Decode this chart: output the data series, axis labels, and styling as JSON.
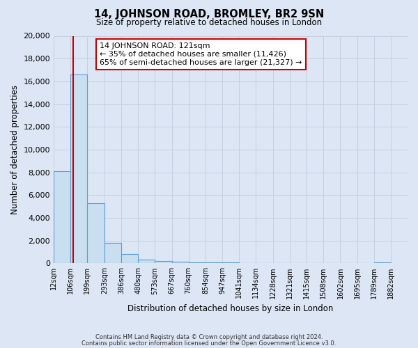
{
  "title1": "14, JOHNSON ROAD, BROMLEY, BR2 9SN",
  "title2": "Size of property relative to detached houses in London",
  "xlabel": "Distribution of detached houses by size in London",
  "ylabel": "Number of detached properties",
  "bar_left_edges": [
    12,
    106,
    199,
    293,
    386,
    480,
    573,
    667,
    760,
    854,
    947,
    1041,
    1134,
    1228,
    1321,
    1415,
    1508,
    1602,
    1695,
    1789
  ],
  "bar_widths": [
    94,
    93,
    94,
    93,
    94,
    93,
    94,
    93,
    94,
    93,
    94,
    93,
    94,
    93,
    94,
    93,
    94,
    93,
    94,
    93
  ],
  "bar_heights": [
    8100,
    16600,
    5300,
    1800,
    800,
    300,
    200,
    150,
    100,
    80,
    50,
    40,
    30,
    25,
    20,
    15,
    12,
    10,
    8,
    100
  ],
  "xtick_labels": [
    "12sqm",
    "106sqm",
    "199sqm",
    "293sqm",
    "386sqm",
    "480sqm",
    "573sqm",
    "667sqm",
    "760sqm",
    "854sqm",
    "947sqm",
    "1041sqm",
    "1134sqm",
    "1228sqm",
    "1321sqm",
    "1415sqm",
    "1508sqm",
    "1602sqm",
    "1695sqm",
    "1789sqm",
    "1882sqm"
  ],
  "xtick_positions": [
    12,
    106,
    199,
    293,
    386,
    480,
    573,
    667,
    760,
    854,
    947,
    1041,
    1134,
    1228,
    1321,
    1415,
    1508,
    1602,
    1695,
    1789,
    1882
  ],
  "ylim": [
    0,
    20000
  ],
  "yticks": [
    0,
    2000,
    4000,
    6000,
    8000,
    10000,
    12000,
    14000,
    16000,
    18000,
    20000
  ],
  "xlim_left": 12,
  "xlim_right": 1975,
  "property_size": 121,
  "bar_color": "#c9dff0",
  "bar_edge_color": "#5b9bd5",
  "red_line_color": "#cc0000",
  "grid_color": "#c8cfe0",
  "background_color": "#dce6f5",
  "plot_bg_color": "#dce6f5",
  "annotation_title": "14 JOHNSON ROAD: 121sqm",
  "annotation_line1": "← 35% of detached houses are smaller (11,426)",
  "annotation_line2": "65% of semi-detached houses are larger (21,327) →",
  "annotation_box_color": "#ffffff",
  "annotation_box_edge": "#cc0000",
  "footer1": "Contains HM Land Registry data © Crown copyright and database right 2024.",
  "footer2": "Contains public sector information licensed under the Open Government Licence v3.0."
}
